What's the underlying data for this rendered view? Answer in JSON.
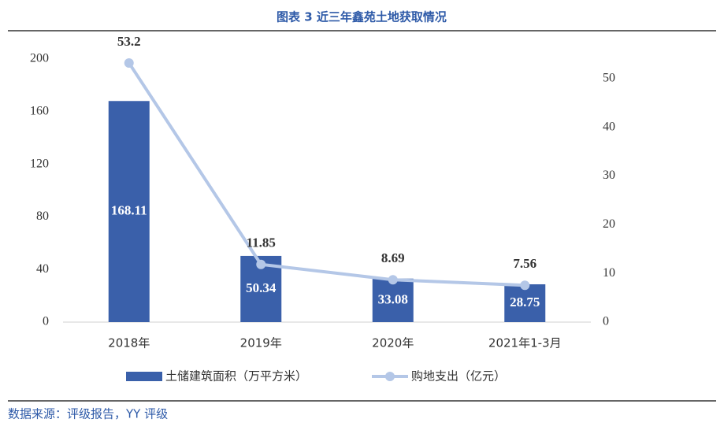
{
  "chart_data": {
    "type": "bar_line",
    "title": "图表 3 近三年鑫苑土地获取情况",
    "categories": [
      "2018年",
      "2019年",
      "2020年",
      "2021年1-3月"
    ],
    "series": [
      {
        "name": "土储建筑面积（万平方米）",
        "type": "bar",
        "color": "#3a60aa",
        "values": [
          168.11,
          50.34,
          33.08,
          28.75
        ]
      },
      {
        "name": "购地支出（亿元）",
        "type": "line",
        "axis": "y2",
        "color": "#b4c7e7",
        "values": [
          53.2,
          11.85,
          8.69,
          7.56
        ]
      }
    ],
    "ylim": [
      0,
      200
    ],
    "yticks": [
      0,
      40,
      80,
      120,
      160,
      200
    ],
    "y2lim": [
      0,
      54
    ],
    "y2ticks": [
      0,
      10,
      20,
      30,
      40,
      50
    ],
    "grid": false,
    "legend": "bottom",
    "source": "数据来源：评级报告，YY 评级"
  }
}
